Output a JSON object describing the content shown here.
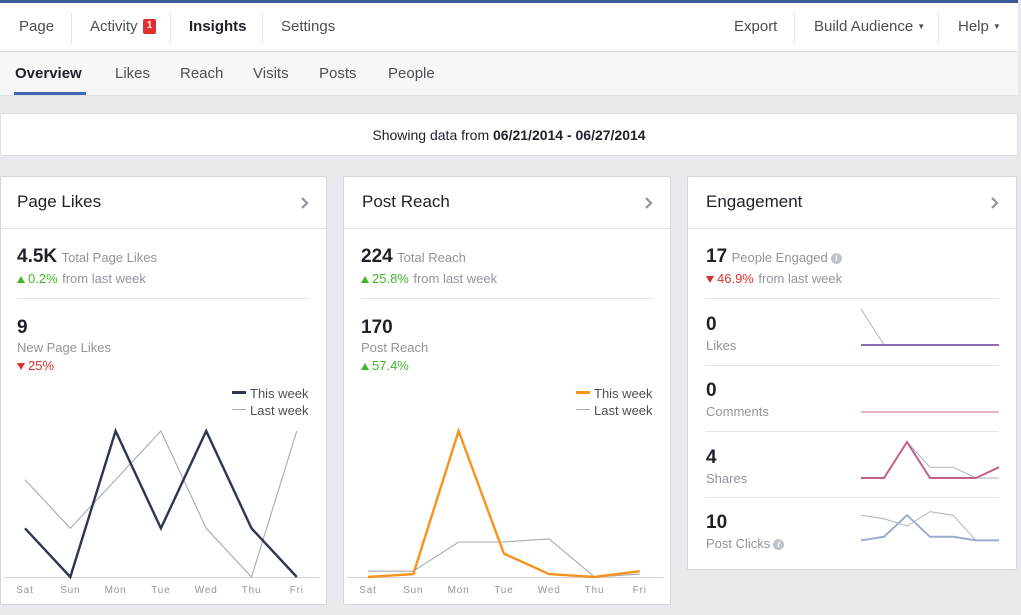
{
  "topnav": {
    "items": [
      {
        "label": "Page"
      },
      {
        "label": "Activity",
        "badge": "1"
      },
      {
        "label": "Insights",
        "active": true
      },
      {
        "label": "Settings"
      }
    ],
    "right": [
      {
        "label": "Export"
      },
      {
        "label": "Build Audience",
        "caret": true
      },
      {
        "label": "Help",
        "caret": true
      }
    ]
  },
  "subnav": {
    "tabs": [
      "Overview",
      "Likes",
      "Reach",
      "Visits",
      "Posts",
      "People"
    ],
    "active": "Overview"
  },
  "daterange": {
    "prefix": "Showing data from ",
    "range": "06/21/2014 - 06/27/2014"
  },
  "colors": {
    "this_week_likes": "#2c3754",
    "this_week_reach": "#f7931e",
    "last_week": "#a8aaad",
    "likes_line": "#8c6bb1",
    "comments_line": "#e8b4c4",
    "shares_line": "#c2608a",
    "clicks_line": "#9aaed2",
    "accent": "#4267b2"
  },
  "page_likes": {
    "title": "Page Likes",
    "total_value": "4.5K",
    "total_label": "Total Page Likes",
    "total_change": "0.2%",
    "total_change_suffix": "from last week",
    "new_value": "9",
    "new_label": "New Page Likes",
    "new_change": "25%",
    "legend_this": "This week",
    "legend_last": "Last week"
  },
  "post_reach": {
    "title": "Post Reach",
    "total_value": "224",
    "total_label": "Total Reach",
    "total_change": "25.8%",
    "total_change_suffix": "from last week",
    "post_value": "170",
    "post_label": "Post Reach",
    "post_change": "57.4%",
    "legend_this": "This week",
    "legend_last": "Last week"
  },
  "engagement": {
    "title": "Engagement",
    "people_value": "17",
    "people_label": "People Engaged",
    "people_change": "46.9%",
    "people_change_suffix": "from last week",
    "rows": [
      {
        "value": "0",
        "label": "Likes"
      },
      {
        "value": "0",
        "label": "Comments"
      },
      {
        "value": "4",
        "label": "Shares"
      },
      {
        "value": "10",
        "label": "Post Clicks"
      }
    ]
  },
  "chart_data": [
    {
      "type": "line",
      "categories": [
        "Sat",
        "Sun",
        "Mon",
        "Tue",
        "Wed",
        "Thu",
        "Fri"
      ],
      "series": [
        {
          "name": "This week",
          "values": [
            1,
            0,
            3,
            1,
            3,
            1,
            0
          ]
        },
        {
          "name": "Last week",
          "values": [
            2,
            1,
            2,
            3,
            1,
            0,
            3
          ]
        }
      ],
      "ylim": [
        0,
        3
      ]
    },
    {
      "type": "line",
      "categories": [
        "Sat",
        "Sun",
        "Mon",
        "Tue",
        "Wed",
        "Thu",
        "Fri"
      ],
      "series": [
        {
          "name": "This week",
          "values": [
            0,
            1,
            50,
            8,
            1,
            0,
            2
          ]
        },
        {
          "name": "Last week",
          "values": [
            2,
            2,
            12,
            12,
            13,
            0,
            1
          ]
        }
      ],
      "ylim": [
        0,
        50
      ]
    },
    {
      "type": "line",
      "categories": [
        "Sat",
        "Sun",
        "Mon",
        "Tue",
        "Wed",
        "Thu",
        "Fri"
      ],
      "series": [
        {
          "name": "Likes",
          "values": [
            0,
            0,
            0,
            0,
            0,
            0,
            0
          ]
        },
        {
          "values": [
            1,
            0,
            0,
            0,
            0,
            0,
            0
          ]
        }
      ],
      "ylim": [
        0,
        1
      ]
    },
    {
      "type": "line",
      "categories": [
        "Sat",
        "Sun",
        "Mon",
        "Tue",
        "Wed",
        "Thu",
        "Fri"
      ],
      "series": [
        {
          "name": "Comments",
          "values": [
            0,
            0,
            0,
            0,
            0,
            0,
            0
          ]
        }
      ],
      "ylim": [
        0,
        1
      ]
    },
    {
      "type": "line",
      "categories": [
        "Sat",
        "Sun",
        "Mon",
        "Tue",
        "Wed",
        "Thu",
        "Fri"
      ],
      "series": [
        {
          "name": "Shares",
          "values": [
            0,
            0,
            1,
            0,
            0,
            0,
            0.3
          ]
        },
        {
          "values": [
            0,
            0,
            1,
            0.3,
            0.3,
            0,
            0
          ]
        }
      ],
      "ylim": [
        0,
        1
      ]
    },
    {
      "type": "line",
      "categories": [
        "Sat",
        "Sun",
        "Mon",
        "Tue",
        "Wed",
        "Thu",
        "Fri"
      ],
      "series": [
        {
          "name": "Post Clicks",
          "values": [
            0.1,
            0.2,
            0.8,
            0.2,
            0.2,
            0.1,
            0.1
          ]
        },
        {
          "values": [
            0.8,
            0.7,
            0.5,
            0.9,
            0.8,
            0.1,
            0.1
          ]
        }
      ],
      "ylim": [
        0,
        1
      ]
    }
  ]
}
